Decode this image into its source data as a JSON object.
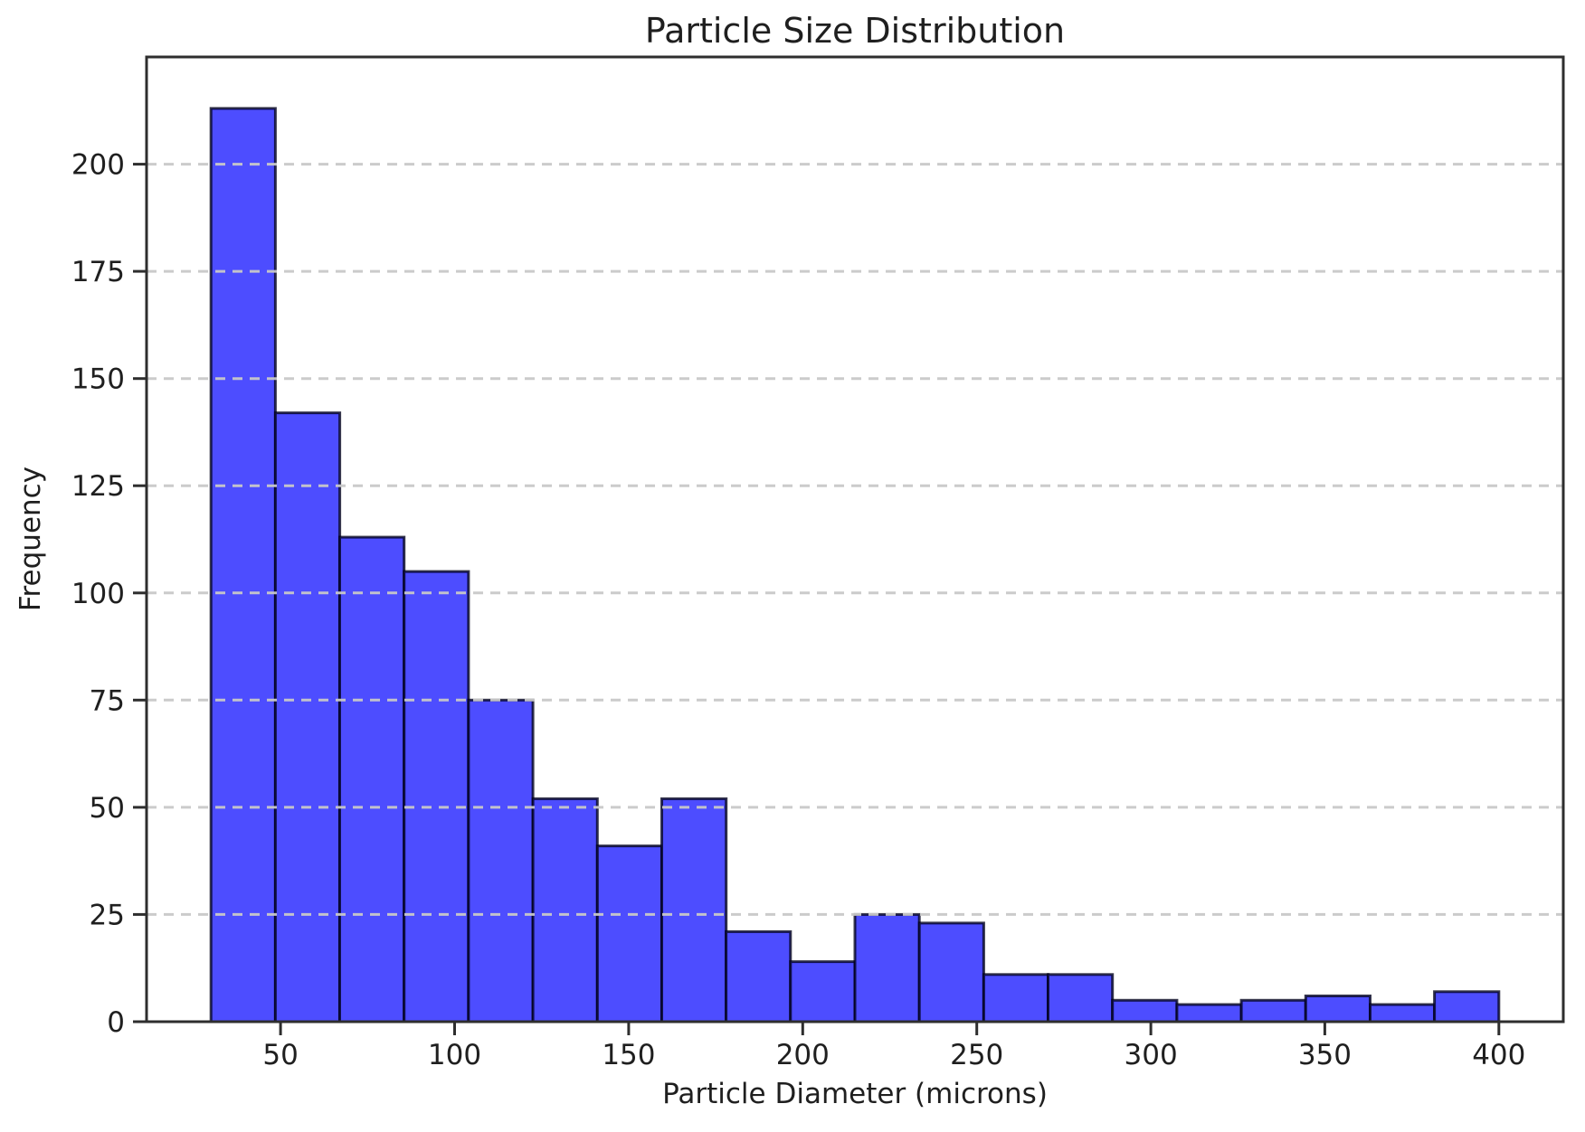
{
  "figure": {
    "background": "#ffffff"
  },
  "chart_data": {
    "type": "bar",
    "subtype": "histogram",
    "title": "Particle Size Distribution",
    "xlabel": "Particle Diameter (microns)",
    "ylabel": "Frequency",
    "bin_edges": [
      30,
      48.5,
      67,
      85.5,
      104,
      122.5,
      141,
      159.5,
      178,
      196.5,
      215,
      233.5,
      252,
      270.5,
      289,
      307.5,
      326,
      344.5,
      363,
      381.5,
      400
    ],
    "counts": [
      213,
      142,
      113,
      105,
      75,
      52,
      41,
      52,
      21,
      14,
      25,
      23,
      11,
      11,
      5,
      4,
      5,
      6,
      4,
      7
    ],
    "x_ticks": [
      50,
      100,
      150,
      200,
      250,
      300,
      350,
      400
    ],
    "y_ticks": [
      0,
      25,
      50,
      75,
      100,
      125,
      150,
      175,
      200
    ],
    "xlim": [
      11.5,
      418.5
    ],
    "ylim": [
      0,
      225
    ],
    "grid": {
      "axis": "y",
      "style": "dashed",
      "color": "#c9c9c9",
      "on_top_of_bars": true
    },
    "colors": {
      "bar_fill": "#4d4dff",
      "bar_edge": "rgba(0,0,25,0.78)",
      "spine": "#2e2e2e",
      "tick": "#2e2e2e",
      "text": "#1f1f1f"
    }
  }
}
